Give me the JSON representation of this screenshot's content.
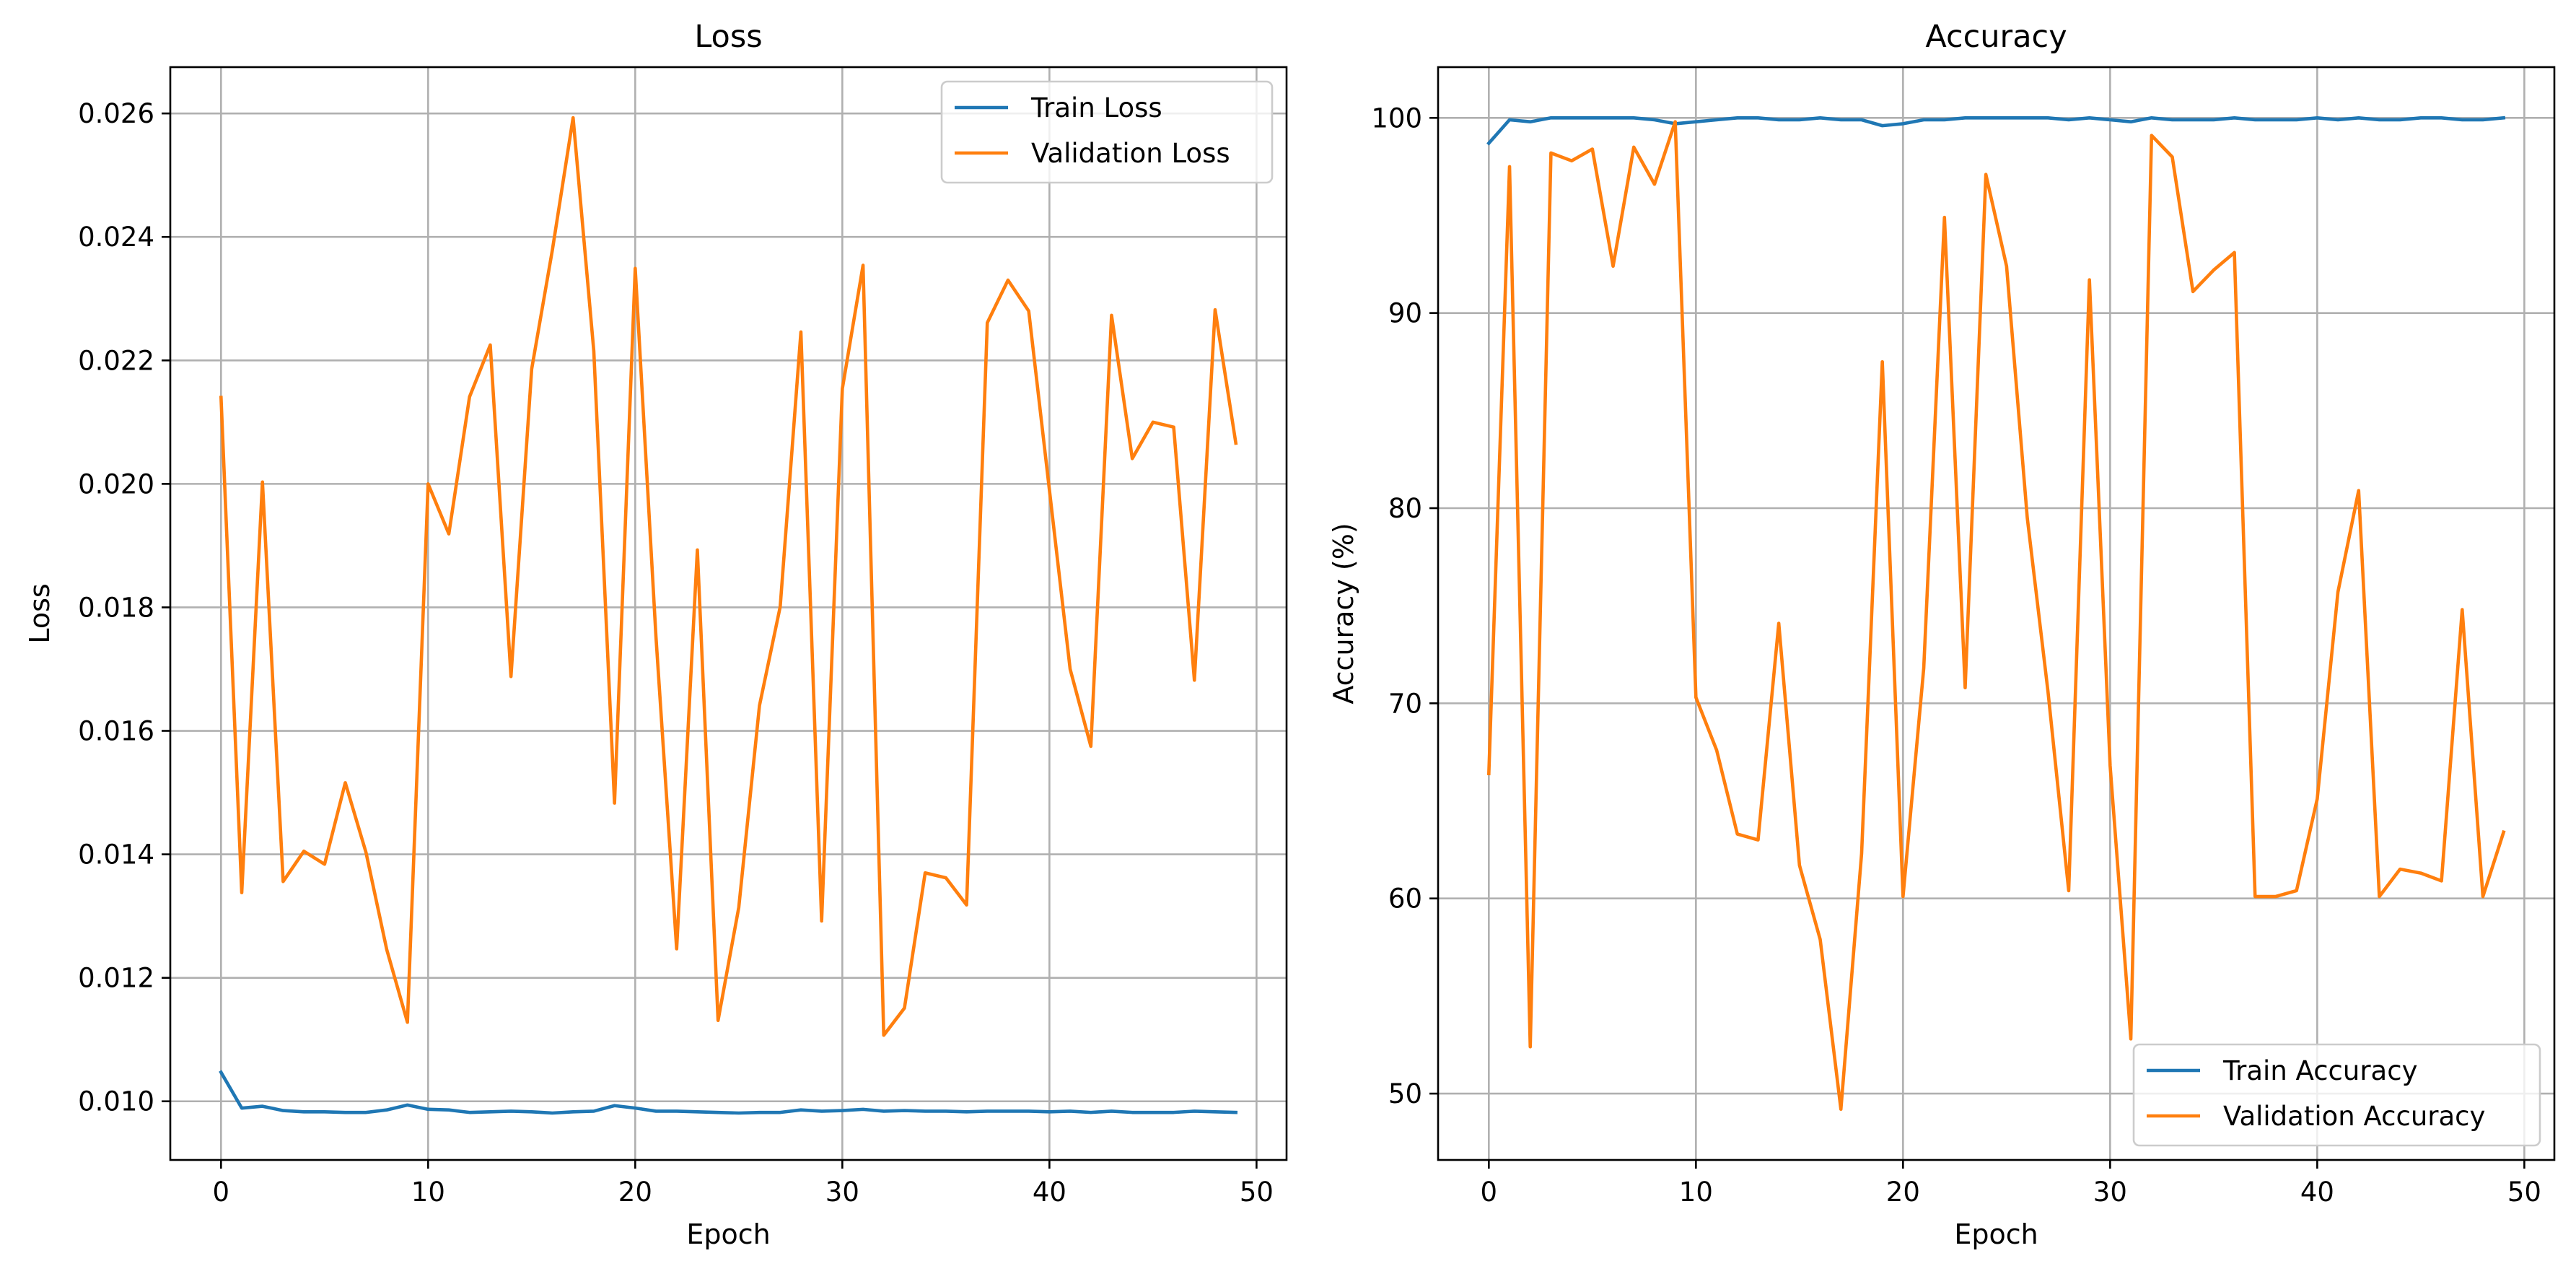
{
  "chart_data": [
    {
      "type": "line",
      "title": "Loss",
      "xlabel": "Epoch",
      "ylabel": "Loss",
      "xlim": [
        -2.45,
        51.45
      ],
      "ylim": [
        0.00905,
        0.02675
      ],
      "xticks": [
        0,
        10,
        20,
        30,
        40,
        50
      ],
      "xtick_labels": [
        "0",
        "10",
        "20",
        "30",
        "40",
        "50"
      ],
      "yticks": [
        0.01,
        0.012,
        0.014,
        0.016,
        0.018,
        0.02,
        0.022,
        0.024,
        0.026
      ],
      "ytick_labels": [
        "0.010",
        "0.012",
        "0.014",
        "0.016",
        "0.018",
        "0.020",
        "0.022",
        "0.024",
        "0.026"
      ],
      "grid": true,
      "legend_loc": "upper right",
      "x": [
        0,
        1,
        2,
        3,
        4,
        5,
        6,
        7,
        8,
        9,
        10,
        11,
        12,
        13,
        14,
        15,
        16,
        17,
        18,
        19,
        20,
        21,
        22,
        23,
        24,
        25,
        26,
        27,
        28,
        29,
        30,
        31,
        32,
        33,
        34,
        35,
        36,
        37,
        38,
        39,
        40,
        41,
        42,
        43,
        44,
        45,
        46,
        47,
        48,
        49
      ],
      "series": [
        {
          "name": "Train Loss",
          "color": "#1f77b4",
          "values": [
            0.01047,
            0.00989,
            0.00992,
            0.00985,
            0.00983,
            0.00983,
            0.00982,
            0.00982,
            0.00986,
            0.00994,
            0.00987,
            0.00986,
            0.00982,
            0.00983,
            0.00984,
            0.00983,
            0.00981,
            0.00983,
            0.00984,
            0.00993,
            0.00989,
            0.00984,
            0.00984,
            0.00983,
            0.00982,
            0.00981,
            0.00982,
            0.00982,
            0.00986,
            0.00984,
            0.00985,
            0.00987,
            0.00984,
            0.00985,
            0.00984,
            0.00984,
            0.00983,
            0.00984,
            0.00984,
            0.00984,
            0.00983,
            0.00984,
            0.00982,
            0.00984,
            0.00982,
            0.00982,
            0.00982,
            0.00984,
            0.00983,
            0.00982
          ]
        },
        {
          "name": "Validation Loss",
          "color": "#ff7f0e",
          "values": [
            0.0214,
            0.01338,
            0.02003,
            0.01356,
            0.01405,
            0.01384,
            0.01516,
            0.01403,
            0.01246,
            0.01128,
            0.02,
            0.01919,
            0.02141,
            0.02225,
            0.01688,
            0.02186,
            0.02379,
            0.02593,
            0.02215,
            0.01483,
            0.02349,
            0.01753,
            0.01247,
            0.01893,
            0.01131,
            0.01314,
            0.01641,
            0.01801,
            0.02246,
            0.01292,
            0.02154,
            0.02354,
            0.01107,
            0.01151,
            0.0137,
            0.01362,
            0.01318,
            0.02261,
            0.0233,
            0.0228,
            0.0199,
            0.017,
            0.01575,
            0.02273,
            0.02041,
            0.021,
            0.02092,
            0.01682,
            0.02282,
            0.02066
          ]
        }
      ]
    },
    {
      "type": "line",
      "title": "Accuracy",
      "xlabel": "Epoch",
      "ylabel": "Accuracy (%)",
      "xlim": [
        -2.45,
        51.45
      ],
      "ylim": [
        46.6,
        102.6
      ],
      "xticks": [
        0,
        10,
        20,
        30,
        40,
        50
      ],
      "xtick_labels": [
        "0",
        "10",
        "20",
        "30",
        "40",
        "50"
      ],
      "yticks": [
        50,
        60,
        70,
        80,
        90,
        100
      ],
      "ytick_labels": [
        "50",
        "60",
        "70",
        "80",
        "90",
        "100"
      ],
      "grid": true,
      "legend_loc": "lower right",
      "x": [
        0,
        1,
        2,
        3,
        4,
        5,
        6,
        7,
        8,
        9,
        10,
        11,
        12,
        13,
        14,
        15,
        16,
        17,
        18,
        19,
        20,
        21,
        22,
        23,
        24,
        25,
        26,
        27,
        28,
        29,
        30,
        31,
        32,
        33,
        34,
        35,
        36,
        37,
        38,
        39,
        40,
        41,
        42,
        43,
        44,
        45,
        46,
        47,
        48,
        49
      ],
      "series": [
        {
          "name": "Train Accuracy",
          "color": "#1f77b4",
          "values": [
            98.7,
            99.9,
            99.8,
            100.0,
            100.0,
            100.0,
            100.0,
            100.0,
            99.9,
            99.7,
            99.8,
            99.9,
            100.0,
            100.0,
            99.9,
            99.9,
            100.0,
            99.9,
            99.9,
            99.6,
            99.7,
            99.9,
            99.9,
            100.0,
            100.0,
            100.0,
            100.0,
            100.0,
            99.9,
            100.0,
            99.9,
            99.8,
            100.0,
            99.9,
            99.9,
            99.9,
            100.0,
            99.9,
            99.9,
            99.9,
            100.0,
            99.9,
            100.0,
            99.9,
            99.9,
            100.0,
            100.0,
            99.9,
            99.9,
            100.0
          ]
        },
        {
          "name": "Validation Accuracy",
          "color": "#ff7f0e",
          "values": [
            66.4,
            97.5,
            52.4,
            98.2,
            97.8,
            98.4,
            92.4,
            98.5,
            96.6,
            99.8,
            70.3,
            67.6,
            63.3,
            63.0,
            74.1,
            61.7,
            57.9,
            49.2,
            62.3,
            87.5,
            60.1,
            71.8,
            94.9,
            70.8,
            97.1,
            92.4,
            79.5,
            70.6,
            60.4,
            91.7,
            66.8,
            52.8,
            99.1,
            98.0,
            91.1,
            92.2,
            93.1,
            60.1,
            60.1,
            60.4,
            65.1,
            75.7,
            80.9,
            60.1,
            61.5,
            61.3,
            60.9,
            74.8,
            60.1,
            63.4
          ]
        }
      ]
    }
  ]
}
